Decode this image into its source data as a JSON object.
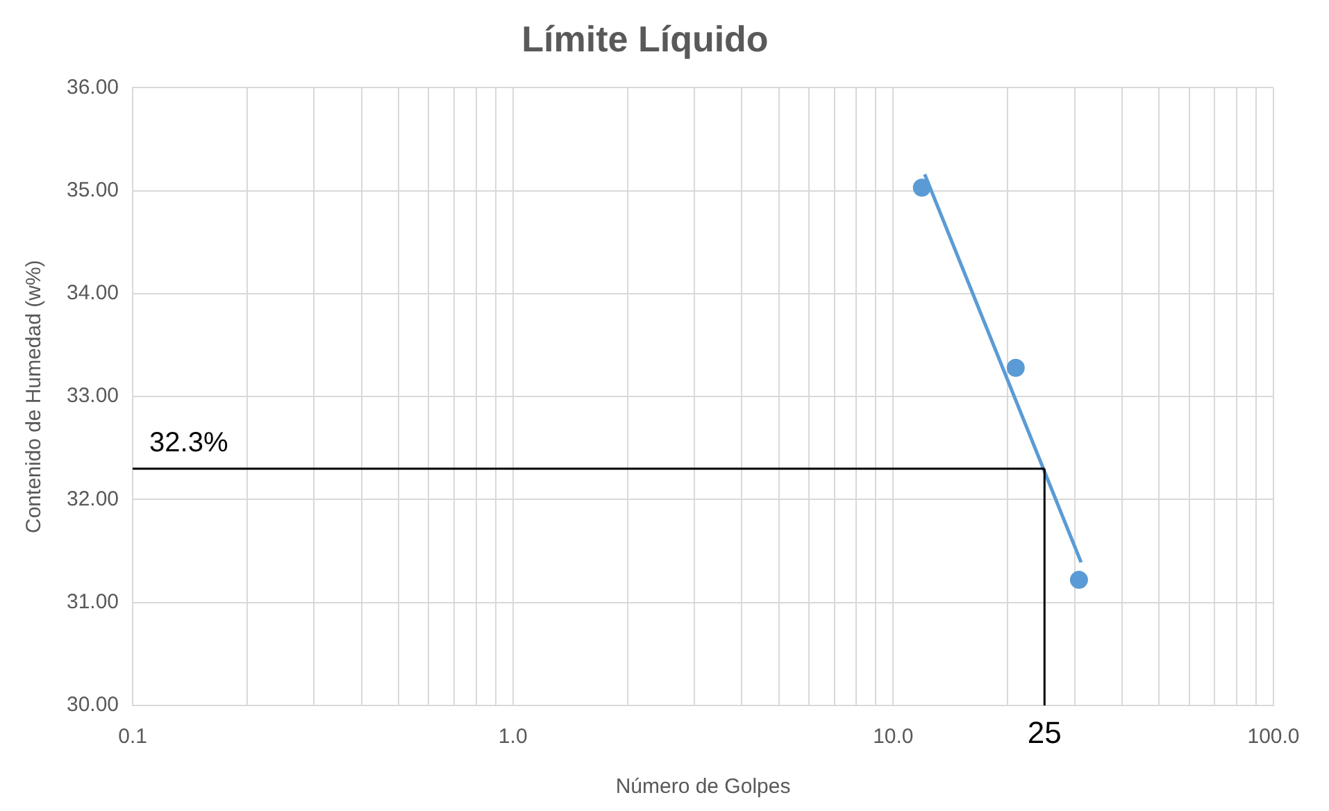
{
  "chart_data": {
    "type": "scatter",
    "title": "Límite Líquido",
    "xlabel": "Número de Golpes",
    "ylabel": "Contenido de Humedad (w%)",
    "log": "x",
    "grid": true,
    "marker": "circle",
    "xlim": [
      0.1,
      100
    ],
    "ylim": [
      30,
      36
    ],
    "xticks": [
      {
        "value": 0.1,
        "label": "0.1"
      },
      {
        "value": 0.2,
        "label": null
      },
      {
        "value": 0.3,
        "label": null
      },
      {
        "value": 0.4,
        "label": null
      },
      {
        "value": 0.5,
        "label": null
      },
      {
        "value": 0.6,
        "label": null
      },
      {
        "value": 0.7,
        "label": null
      },
      {
        "value": 0.8,
        "label": null
      },
      {
        "value": 0.9,
        "label": null
      },
      {
        "value": 1,
        "label": "1.0"
      },
      {
        "value": 2,
        "label": null
      },
      {
        "value": 3,
        "label": null
      },
      {
        "value": 4,
        "label": null
      },
      {
        "value": 5,
        "label": null
      },
      {
        "value": 6,
        "label": null
      },
      {
        "value": 7,
        "label": null
      },
      {
        "value": 8,
        "label": null
      },
      {
        "value": 9,
        "label": null
      },
      {
        "value": 10,
        "label": "10.0"
      },
      {
        "value": 20,
        "label": null
      },
      {
        "value": 30,
        "label": null
      },
      {
        "value": 40,
        "label": null
      },
      {
        "value": 50,
        "label": null
      },
      {
        "value": 60,
        "label": null
      },
      {
        "value": 70,
        "label": null
      },
      {
        "value": 80,
        "label": null
      },
      {
        "value": 90,
        "label": null
      },
      {
        "value": 100,
        "label": "100.0"
      }
    ],
    "yticks": [
      {
        "value": 30,
        "label": "30.00"
      },
      {
        "value": 31,
        "label": "31.00"
      },
      {
        "value": 32,
        "label": "32.00"
      },
      {
        "value": 33,
        "label": "33.00"
      },
      {
        "value": 34,
        "label": "34.00"
      },
      {
        "value": 35,
        "label": "35.00"
      },
      {
        "value": 36,
        "label": "36.00"
      }
    ],
    "series": [
      {
        "type": "line",
        "marker": "none",
        "color": "#5b9bd5",
        "x": [
          12.1,
          31.2
        ],
        "values": [
          35.16,
          31.39
        ]
      },
      {
        "type": "scatter",
        "color": "#5b9bd5",
        "x": [
          11.9,
          21,
          30.8
        ],
        "values": [
          35.03,
          33.28,
          31.22
        ]
      }
    ],
    "ref_lines": [
      {
        "axis": "y",
        "value": 32.3,
        "label": "32.3%",
        "color": "#000000"
      },
      {
        "axis": "x",
        "value": 25,
        "label": "25",
        "color": "#000000"
      }
    ]
  }
}
